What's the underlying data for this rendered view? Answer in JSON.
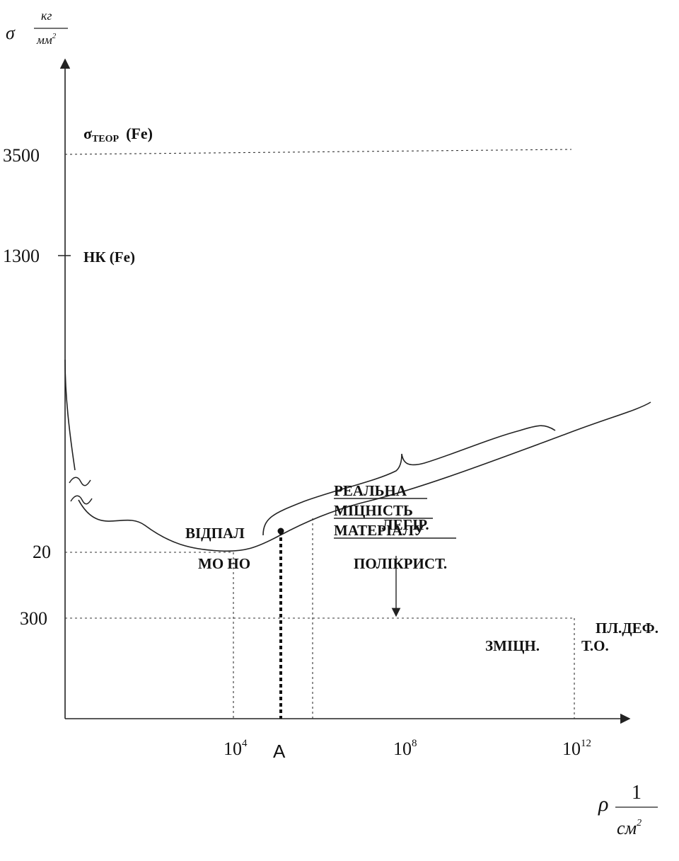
{
  "y_axis": {
    "symbol": "σ",
    "unit_num": "кг",
    "unit_den": "мм",
    "unit_den_exp": "2",
    "ticks": [
      {
        "value": "3500",
        "label": "3500"
      },
      {
        "value": "1300",
        "label": "1300"
      },
      {
        "value": "300",
        "label": "300"
      },
      {
        "value": "20",
        "label": "20"
      }
    ]
  },
  "x_axis": {
    "symbol": "ρ",
    "unit_num": "1",
    "unit_den": "см",
    "unit_den_exp": "2",
    "ticks": [
      {
        "base": "10",
        "exp": "4"
      },
      {
        "base": "10",
        "exp": "8"
      },
      {
        "base": "10",
        "exp": "12"
      }
    ],
    "point_label": "A"
  },
  "labels": {
    "sigma_theor_sym": "σ",
    "sigma_theor_sub": "ТЕОР",
    "sigma_theor_tail": "(Fe)",
    "nk": "НК (Fe)",
    "real_strength_1": "РЕАЛЬНА",
    "real_strength_2": "МІЦНІСТЬ",
    "real_strength_3": "МАТЕРІАЛУ",
    "annealing": "ВІДПАЛ",
    "mono": "МО НО",
    "polycryst": "ПОЛІКРИСТ.",
    "alloying": "ЛЕГІР.",
    "hardening": "ЗМІЦН.",
    "plastic_def": "ПЛ.ДЕФ.",
    "heat_treat": "Т.О."
  }
}
